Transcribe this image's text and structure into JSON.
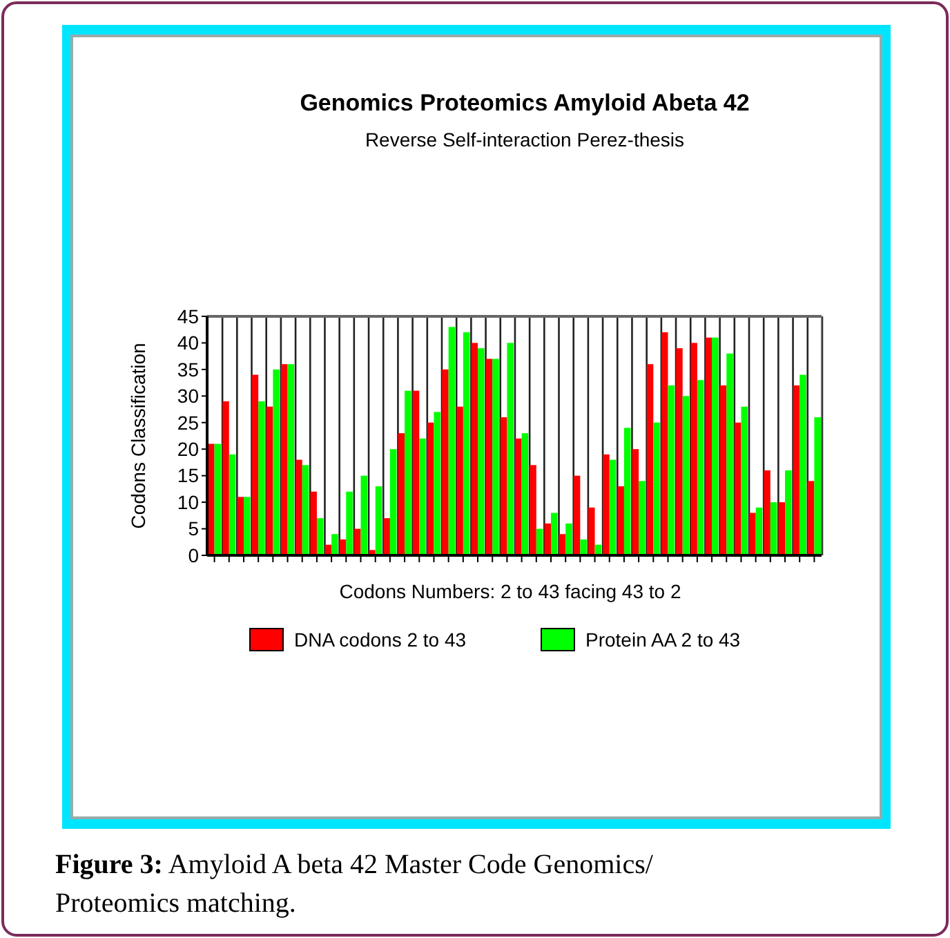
{
  "chart_data": {
    "type": "bar",
    "title": "Genomics Proteomics Amyloid Abeta 42",
    "subtitle": "Reverse Self-interaction Perez-thesis",
    "xlabel": "Codons Numbers: 2 to 43 facing 43 to 2",
    "ylabel": "Codons Classification",
    "categories": [
      null,
      null,
      null,
      null,
      null,
      null,
      null,
      null,
      null,
      null,
      null,
      null,
      null,
      null,
      null,
      null,
      null,
      null,
      null,
      null,
      null,
      null,
      null,
      null,
      null,
      null,
      null,
      null,
      null,
      null,
      null,
      null,
      null,
      null,
      null,
      null,
      null,
      null,
      null,
      null,
      null,
      null
    ],
    "series": [
      {
        "name": "DNA codons 2 to 43",
        "color": "#ff0000",
        "values": [
          21,
          29,
          11,
          34,
          28,
          36,
          18,
          12,
          2,
          3,
          5,
          1,
          7,
          23,
          31,
          25,
          35,
          28,
          40,
          37,
          26,
          22,
          17,
          6,
          4,
          15,
          9,
          19,
          13,
          20,
          36,
          42,
          39,
          40,
          41,
          32,
          25,
          8,
          16,
          10,
          32,
          14
        ]
      },
      {
        "name": "Protein AA 2 to 43",
        "color": "#00ff00",
        "values": [
          21,
          19,
          11,
          29,
          35,
          36,
          17,
          7,
          4,
          12,
          15,
          13,
          20,
          31,
          22,
          27,
          43,
          42,
          39,
          37,
          40,
          23,
          5,
          8,
          6,
          3,
          2,
          18,
          24,
          14,
          25,
          32,
          30,
          33,
          41,
          38,
          28,
          9,
          10,
          16,
          34,
          26
        ]
      }
    ],
    "ylim": [
      0,
      45
    ],
    "yticks": [
      0,
      5,
      10,
      15,
      20,
      25,
      30,
      35,
      40,
      45
    ],
    "grid": "x",
    "legend": "bottom",
    "annotations": [
      "Figure 3: Amyloid A beta 42 Master Code Genomics/ Proteomics matching."
    ]
  }
}
